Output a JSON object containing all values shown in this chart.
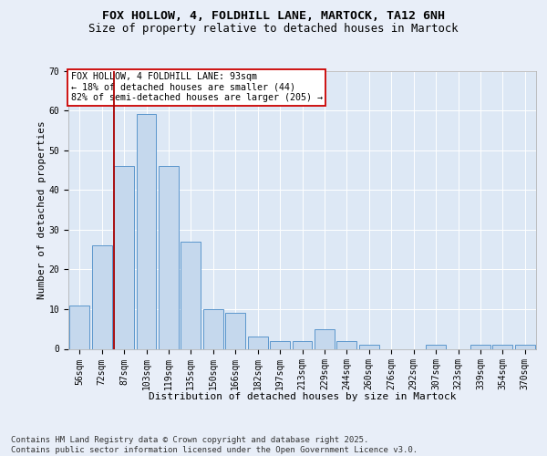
{
  "title_line1": "FOX HOLLOW, 4, FOLDHILL LANE, MARTOCK, TA12 6NH",
  "title_line2": "Size of property relative to detached houses in Martock",
  "xlabel": "Distribution of detached houses by size in Martock",
  "ylabel": "Number of detached properties",
  "categories": [
    "56sqm",
    "72sqm",
    "87sqm",
    "103sqm",
    "119sqm",
    "135sqm",
    "150sqm",
    "166sqm",
    "182sqm",
    "197sqm",
    "213sqm",
    "229sqm",
    "244sqm",
    "260sqm",
    "276sqm",
    "292sqm",
    "307sqm",
    "323sqm",
    "339sqm",
    "354sqm",
    "370sqm"
  ],
  "values": [
    11,
    26,
    46,
    59,
    46,
    27,
    10,
    9,
    3,
    2,
    2,
    5,
    2,
    1,
    0,
    0,
    1,
    0,
    1,
    1,
    1
  ],
  "bar_color": "#c5d8ed",
  "bar_edge_color": "#5b96cc",
  "reference_line_x": 1.55,
  "reference_line_color": "#aa0000",
  "annotation_line1": "FOX HOLLOW, 4 FOLDHILL LANE: 93sqm",
  "annotation_line2": "← 18% of detached houses are smaller (44)",
  "annotation_line3": "82% of semi-detached houses are larger (205) →",
  "annotation_box_facecolor": "#ffffff",
  "annotation_box_edgecolor": "#cc0000",
  "ylim": [
    0,
    70
  ],
  "yticks": [
    0,
    10,
    20,
    30,
    40,
    50,
    60,
    70
  ],
  "bg_color": "#dde8f5",
  "fig_bg_color": "#e8eef8",
  "footer_text": "Contains HM Land Registry data © Crown copyright and database right 2025.\nContains public sector information licensed under the Open Government Licence v3.0.",
  "title_fontsize": 9.5,
  "subtitle_fontsize": 8.8,
  "axis_label_fontsize": 8,
  "tick_fontsize": 7,
  "annotation_fontsize": 7.2,
  "footer_fontsize": 6.5
}
